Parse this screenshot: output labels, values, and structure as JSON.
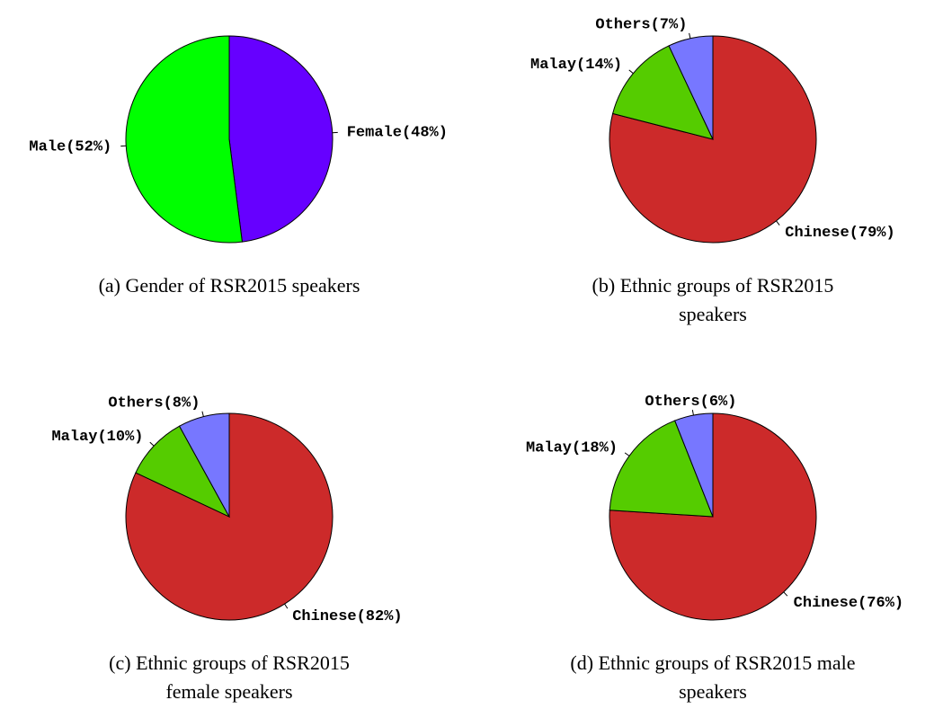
{
  "chart_data": [
    {
      "type": "pie",
      "caption": "(a) Gender of RSR2015 speakers",
      "values": [
        48,
        52
      ],
      "value_labels": [
        "Female(48%)",
        "Male(52%)"
      ],
      "colors": [
        "#6600ff",
        "#00ff00"
      ]
    },
    {
      "type": "pie",
      "caption": "(b) Ethnic groups of RSR2015 speakers",
      "values": [
        79,
        14,
        7
      ],
      "value_labels": [
        "Chinese(79%)",
        "Malay(14%)",
        "Others(7%)"
      ],
      "colors": [
        "#cc2a2a",
        "#55cc00",
        "#7777ff"
      ]
    },
    {
      "type": "pie",
      "caption": "(c) Ethnic groups of RSR2015 female speakers",
      "values": [
        82,
        10,
        8
      ],
      "value_labels": [
        "Chinese(82%)",
        "Malay(10%)",
        "Others(8%)"
      ],
      "colors": [
        "#cc2a2a",
        "#55cc00",
        "#7777ff"
      ]
    },
    {
      "type": "pie",
      "caption": "(d) Ethnic groups of RSR2015 male speakers",
      "values": [
        76,
        18,
        6
      ],
      "value_labels": [
        "Chinese(76%)",
        "Malay(18%)",
        "Others(6%)"
      ],
      "colors": [
        "#cc2a2a",
        "#55cc00",
        "#7777ff"
      ]
    }
  ]
}
